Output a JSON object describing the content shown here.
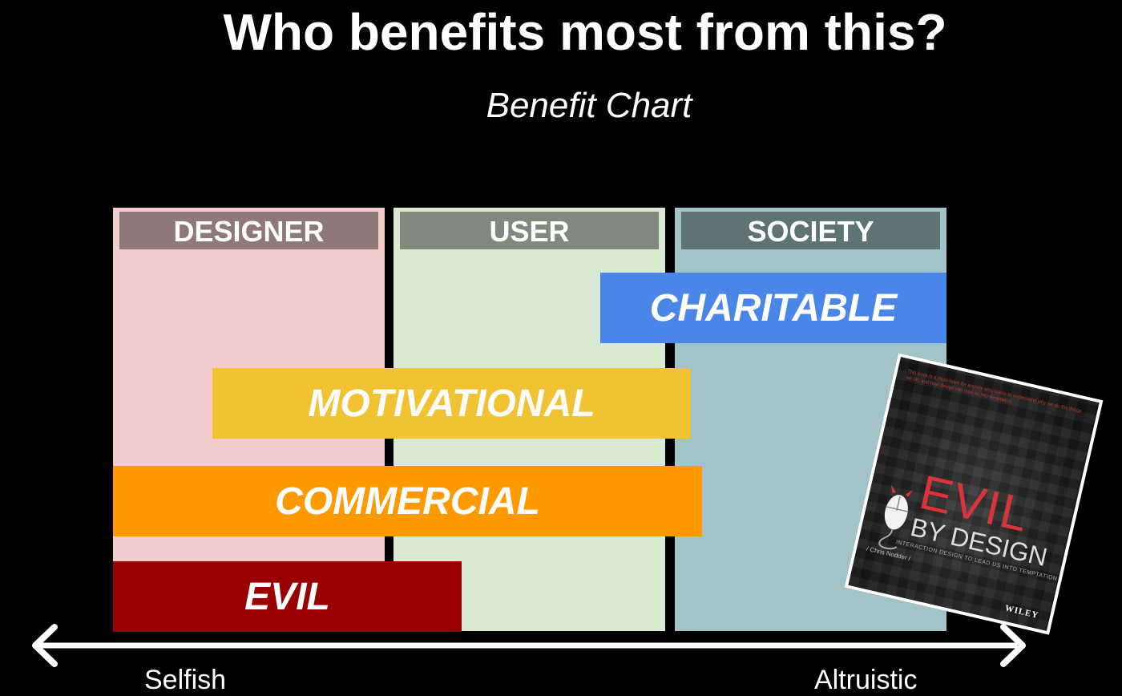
{
  "title": "Who benefits most from this?",
  "subtitle": "Benefit Chart",
  "columns": {
    "designer": "DESIGNER",
    "user": "USER",
    "society": "SOCIETY"
  },
  "bands": {
    "charitable": "CHARITABLE",
    "motivational": "MOTIVATIONAL",
    "commercial": "COMMERCIAL",
    "evil": "EVIL"
  },
  "axis": {
    "left": "Selfish",
    "right": "Altruistic"
  },
  "book": {
    "blurb": "This book is a must-have for anyone who wants to understand why we do the things we do, and how design can lead us into temptation",
    "title_line1": "EVIL",
    "title_line2": "BY DESIGN",
    "tagline": "INTERACTION DESIGN TO LEAD US INTO TEMPTATION",
    "author": "/ Chris Nodder /",
    "publisher": "WILEY"
  },
  "colors": {
    "designer": "#f4cccc",
    "user": "#d9ead3",
    "society": "#a2c4c9",
    "charitable": "#4a86e8",
    "motivational": "#f1c232",
    "commercial": "#ff9900",
    "evil": "#990000"
  }
}
